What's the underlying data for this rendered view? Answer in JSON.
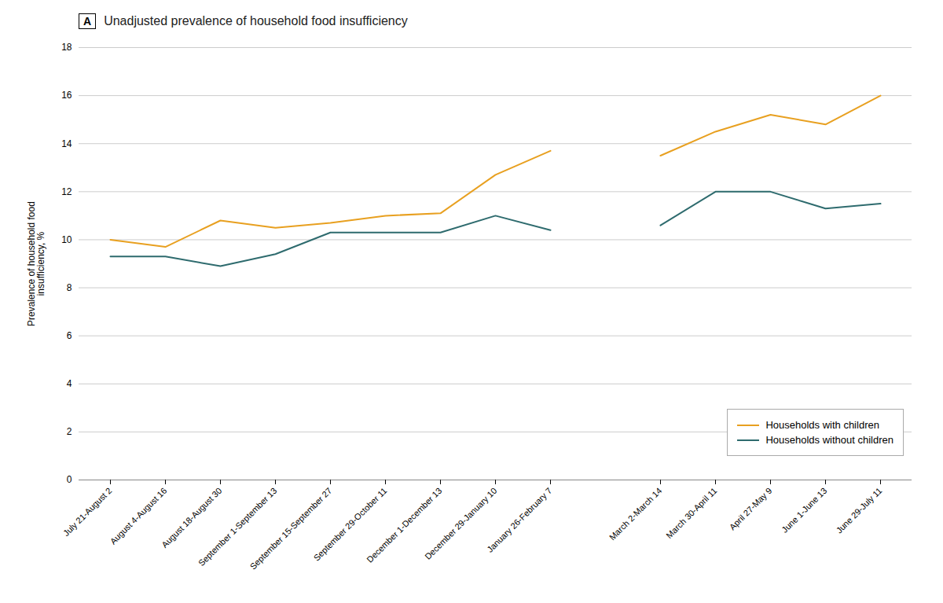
{
  "chart_data": {
    "type": "line",
    "title": "Unadjusted prevalence of household food insufficiency",
    "annotations": [
      {
        "text": "A"
      }
    ],
    "ylabel": "Prevalence of household food\ninsufficiency, %",
    "categories": [
      "July 21-August 2",
      "August 4-August 16",
      "August 18-August 30",
      "September 1-September 13",
      "September 15-September 27",
      "September 29-October 11",
      "December 1-December 13",
      "December 29-January 10",
      "January 26-February 7",
      null,
      "March 2-March 14",
      "March 30-April 11",
      "April 27-May 9",
      "June 1-June 13",
      "June 29-July 11"
    ],
    "series": [
      {
        "name": "Households with children",
        "color": "#E8A020",
        "values": [
          10.0,
          9.7,
          10.8,
          10.5,
          10.7,
          11.0,
          11.1,
          12.7,
          13.7,
          null,
          13.5,
          14.5,
          15.2,
          14.8,
          16.0
        ]
      },
      {
        "name": "Households without children",
        "color": "#2E6B6E",
        "values": [
          9.3,
          9.3,
          8.9,
          9.4,
          10.3,
          10.3,
          10.3,
          11.0,
          10.4,
          null,
          10.6,
          12.0,
          12.0,
          11.3,
          11.5
        ]
      }
    ],
    "ylim": [
      0,
      18
    ],
    "yticks": [
      0,
      2,
      4,
      6,
      8,
      10,
      12,
      14,
      16,
      18
    ],
    "grid": true,
    "legend": "lower right"
  }
}
